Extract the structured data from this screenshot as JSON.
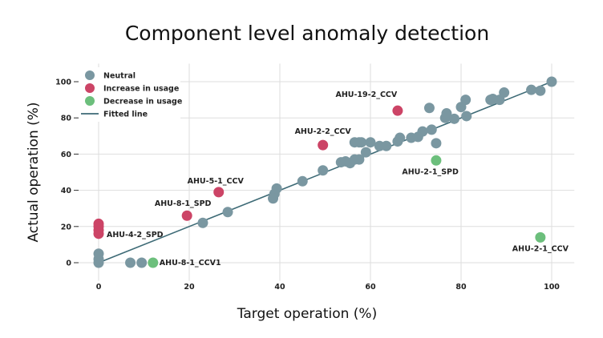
{
  "chart_data": {
    "type": "scatter",
    "title": "Component level anomaly detection",
    "xlabel": "Target operation (%)",
    "ylabel": "Actual operation (%)",
    "xlim": [
      -5,
      105
    ],
    "ylim": [
      -10,
      110
    ],
    "xticks": [
      0,
      20,
      40,
      60,
      80,
      100
    ],
    "yticks": [
      0,
      20,
      40,
      60,
      80,
      100
    ],
    "grid": true,
    "legend_position": "top-left",
    "colors": {
      "neutral": "#7a97a1",
      "increase": "#cc4466",
      "decrease": "#6cbf7c",
      "fitted": "#3d6a76"
    },
    "legend": [
      {
        "key": "neutral",
        "label": "Neutral",
        "kind": "marker"
      },
      {
        "key": "increase",
        "label": "Increase in usage",
        "kind": "marker"
      },
      {
        "key": "decrease",
        "label": "Decrease in usage",
        "kind": "marker"
      },
      {
        "key": "fitted",
        "label": "Fitted line",
        "kind": "line"
      }
    ],
    "fitted_line": [
      [
        0,
        0
      ],
      [
        100,
        100
      ]
    ],
    "series": [
      {
        "name": "Neutral",
        "key": "neutral",
        "points": [
          [
            0,
            0
          ],
          [
            0,
            2
          ],
          [
            0,
            5
          ],
          [
            7,
            0
          ],
          [
            9.5,
            0
          ],
          [
            23,
            22
          ],
          [
            28.5,
            28
          ],
          [
            38.5,
            35.5
          ],
          [
            38.8,
            38
          ],
          [
            39.3,
            41
          ],
          [
            45,
            45
          ],
          [
            49.5,
            51
          ],
          [
            53.5,
            55.5
          ],
          [
            54.5,
            56
          ],
          [
            55.5,
            55
          ],
          [
            56.5,
            57
          ],
          [
            57.5,
            57
          ],
          [
            56.5,
            66.5
          ],
          [
            57.5,
            66.5
          ],
          [
            58,
            66.5
          ],
          [
            59,
            61
          ],
          [
            60,
            66.5
          ],
          [
            62,
            64.5
          ],
          [
            63.5,
            64.5
          ],
          [
            66,
            67
          ],
          [
            66.5,
            69
          ],
          [
            69,
            69
          ],
          [
            70.5,
            69.5
          ],
          [
            71.5,
            72.5
          ],
          [
            73.5,
            73.5
          ],
          [
            73,
            85.5
          ],
          [
            74.5,
            66
          ],
          [
            76.5,
            80
          ],
          [
            76.8,
            82.5
          ],
          [
            78.5,
            79.5
          ],
          [
            80,
            86
          ],
          [
            81,
            90
          ],
          [
            81.2,
            81
          ],
          [
            86.5,
            90
          ],
          [
            87,
            90.5
          ],
          [
            88.5,
            90
          ],
          [
            89.5,
            94
          ],
          [
            95.5,
            95.5
          ],
          [
            97.5,
            95
          ],
          [
            100,
            100
          ]
        ]
      },
      {
        "name": "Increase in usage",
        "key": "increase",
        "points": [
          [
            0,
            16
          ],
          [
            0,
            18
          ],
          [
            0,
            20
          ],
          [
            0,
            21.5
          ],
          [
            19.5,
            26
          ],
          [
            26.5,
            39
          ],
          [
            49.5,
            65
          ],
          [
            66,
            84
          ]
        ]
      },
      {
        "name": "Decrease in usage",
        "key": "decrease",
        "points": [
          [
            12,
            0
          ],
          [
            74.5,
            56.5
          ],
          [
            97.5,
            14
          ]
        ]
      }
    ],
    "annotations": [
      {
        "text": "AHU-19-2_CCV",
        "x": 65,
        "y": 84,
        "anchor": "end",
        "dx": 5,
        "dy": -17
      },
      {
        "text": "AHU-2-2_CCV",
        "x": 49.5,
        "y": 65,
        "anchor": "middle",
        "dx": 0,
        "dy": -14
      },
      {
        "text": "AHU-2-1_SPD",
        "x": 74.5,
        "y": 56.5,
        "anchor": "end",
        "dx": 28,
        "dy": 17
      },
      {
        "text": "AHU-5-1_CCV",
        "x": 26.5,
        "y": 39,
        "anchor": "middle",
        "dx": -4,
        "dy": -11
      },
      {
        "text": "AHU-8-1_SPD",
        "x": 19.5,
        "y": 26,
        "anchor": "middle",
        "dx": -5,
        "dy": -12
      },
      {
        "text": "AHU-4-2_SPD",
        "x": 0,
        "y": 16,
        "anchor": "start",
        "dx": 10,
        "dy": 4
      },
      {
        "text": "AHU-8-1_CCV1",
        "x": 12,
        "y": 0,
        "anchor": "start",
        "dx": 8,
        "dy": 3
      },
      {
        "text": "AHU-2-1_CCV",
        "x": 97.5,
        "y": 14,
        "anchor": "middle",
        "dx": 0,
        "dy": 17
      }
    ]
  }
}
